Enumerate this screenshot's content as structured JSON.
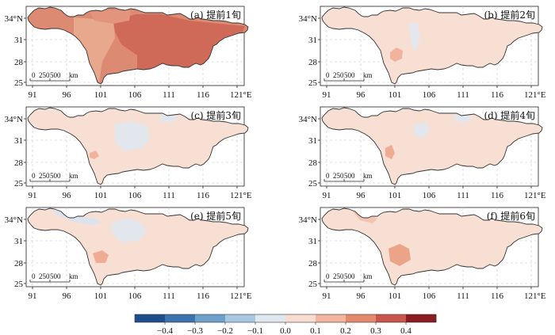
{
  "panels": [
    {
      "label": "(a) 提前1旬",
      "fill": "#dc8a72",
      "blobs": [
        {
          "color": "#cf6a58",
          "shape": "east"
        },
        {
          "color": "#e8a88e",
          "shape": "westbody"
        },
        {
          "color": "#e3947c",
          "shape": "north"
        }
      ]
    },
    {
      "label": "(b) 提前2旬",
      "fill": "#f8dfd3",
      "blobs": [
        {
          "color": "#f0b49c",
          "shape": "spot_sw"
        },
        {
          "color": "#e4e8ee",
          "shape": "thin_mid"
        }
      ]
    },
    {
      "label": "(c) 提前3旬",
      "fill": "#f8dfd3",
      "blobs": [
        {
          "color": "#e2e7ee",
          "shape": "blue_mid"
        },
        {
          "color": "#e2e7ee",
          "shape": "blue_ne"
        },
        {
          "color": "#f0b49c",
          "shape": "spot_s"
        }
      ]
    },
    {
      "label": "(d) 提前4旬",
      "fill": "#f8dfd3",
      "blobs": [
        {
          "color": "#e2e7ee",
          "shape": "blue_small"
        },
        {
          "color": "#e2e7ee",
          "shape": "blue_ne"
        },
        {
          "color": "#efac92",
          "shape": "spot_sw2"
        }
      ]
    },
    {
      "label": "(e) 提前5旬",
      "fill": "#f8dfd3",
      "blobs": [
        {
          "color": "#dde3ec",
          "shape": "blue_nw"
        },
        {
          "color": "#e2e7ee",
          "shape": "blue_mid2"
        },
        {
          "color": "#efac92",
          "shape": "spot_e"
        }
      ]
    },
    {
      "label": "(f) 提前6旬",
      "fill": "#f8dfd3",
      "blobs": [
        {
          "color": "#f1c3b0",
          "shape": "nw_light"
        },
        {
          "color": "#eba487",
          "shape": "spot_f"
        }
      ]
    }
  ],
  "x_ticks": [
    "91",
    "96",
    "101",
    "106",
    "111",
    "116",
    "121°E"
  ],
  "y_ticks": [
    "34°N",
    "31",
    "28",
    "25"
  ],
  "scale_bar": [
    "0",
    "250",
    "500",
    "km"
  ],
  "colorbar": {
    "colors": [
      "#1f4e8c",
      "#3b74ad",
      "#6d9fc9",
      "#a8c8e2",
      "#dfe7ef",
      "#f7ddd0",
      "#f2b6a0",
      "#e38a6d",
      "#c9564a",
      "#8a1c22"
    ],
    "ticks": [
      "−0.4",
      "−0.3",
      "−0.2",
      "−0.1",
      "0.0",
      "0.1",
      "0.2",
      "0.3",
      "0.4"
    ]
  },
  "chart_data": {
    "type": "heatmap",
    "title": "",
    "panels": [
      "(a) 提前1旬",
      "(b) 提前2旬",
      "(c) 提前3旬",
      "(d) 提前4旬",
      "(e) 提前5旬",
      "(f) 提前6旬"
    ],
    "x_axis": [
      "91",
      "96",
      "101",
      "106",
      "111",
      "116",
      "121°E"
    ],
    "y_axis": [
      "34°N",
      "31",
      "28",
      "25"
    ],
    "colorbar_range": [
      -0.4,
      0.4
    ],
    "colorbar_ticks": [
      -0.4,
      -0.3,
      -0.2,
      -0.1,
      0.0,
      0.1,
      0.2,
      0.3,
      0.4
    ],
    "grid": true
  }
}
